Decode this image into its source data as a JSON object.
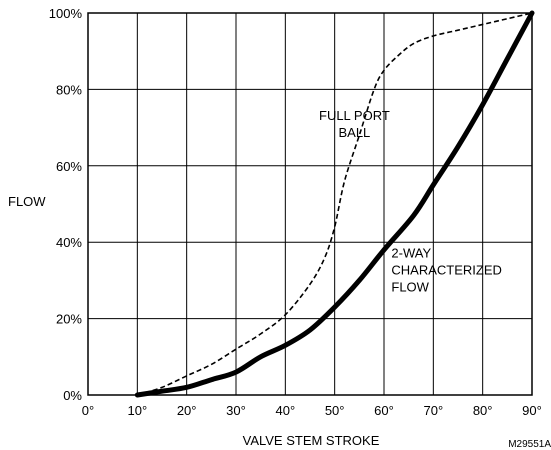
{
  "chart_data": {
    "type": "line",
    "xlabel": "VALVE STEM STROKE",
    "ylabel": "FLOW",
    "xlim": [
      0,
      90
    ],
    "ylim": [
      0,
      100
    ],
    "x_ticks": [
      "0°",
      "10°",
      "20°",
      "30°",
      "40°",
      "50°",
      "60°",
      "70°",
      "80°",
      "90°"
    ],
    "y_ticks": [
      "0%",
      "20%",
      "40%",
      "60%",
      "80%",
      "100%"
    ],
    "grid": true,
    "series": [
      {
        "name": "FULL PORT BALL",
        "style": "dashed",
        "color": "#000000",
        "x": [
          10,
          15,
          20,
          25,
          30,
          35,
          40,
          45,
          48,
          50,
          52,
          55,
          58,
          60,
          63,
          66,
          70,
          75,
          80,
          85,
          90
        ],
        "y": [
          0,
          2,
          5,
          8,
          12,
          16,
          21,
          29,
          36,
          44,
          56,
          68,
          80,
          85,
          89,
          92,
          94,
          95.5,
          97,
          98.5,
          100
        ]
      },
      {
        "name": "2-WAY CHARACTERIZED FLOW",
        "style": "solid-thick",
        "color": "#000000",
        "x": [
          10,
          15,
          20,
          25,
          30,
          35,
          40,
          45,
          50,
          55,
          60,
          66,
          70,
          75,
          80,
          85,
          90
        ],
        "y": [
          0,
          1,
          2,
          4,
          6,
          10,
          13,
          17,
          23,
          30,
          38,
          47,
          55,
          65,
          76,
          88,
          100
        ]
      }
    ],
    "annotations": [
      {
        "lines": [
          "FULL PORT",
          "BALL"
        ],
        "at": [
          54,
          72
        ],
        "anchor": "middle"
      },
      {
        "lines": [
          "2-WAY",
          "CHARACTERIZED",
          "FLOW"
        ],
        "at": [
          61.5,
          36
        ],
        "anchor": "start"
      }
    ],
    "figure_id": "M29551A"
  }
}
